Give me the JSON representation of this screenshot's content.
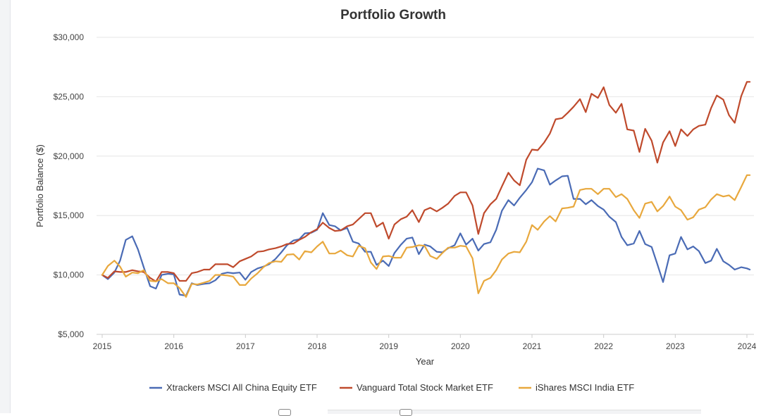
{
  "chart_data": {
    "type": "line",
    "title": "Portfolio Growth",
    "xlabel": "Year",
    "ylabel": "Portfolio Balance ($)",
    "xlim": [
      2015.0,
      2024.1
    ],
    "ylim": [
      5000,
      30000
    ],
    "x_ticks": [
      2015,
      2016,
      2017,
      2018,
      2019,
      2020,
      2021,
      2022,
      2023,
      2024
    ],
    "y_ticks": [
      5000,
      10000,
      15000,
      20000,
      25000,
      30000
    ],
    "y_tick_labels": [
      "$5,000",
      "$10,000",
      "$15,000",
      "$20,000",
      "$25,000",
      "$30,000"
    ],
    "grid": "horizontal",
    "legend_position": "bottom",
    "series": [
      {
        "name": "Xtrackers MSCI All China Equity ETF",
        "color": "#4a6bb5",
        "x": [
          2015.0,
          2015.08,
          2015.17,
          2015.25,
          2015.33,
          2015.42,
          2015.5,
          2015.58,
          2015.67,
          2015.75,
          2015.83,
          2015.92,
          2016.0,
          2016.08,
          2016.17,
          2016.25,
          2016.33,
          2016.42,
          2016.5,
          2016.58,
          2016.67,
          2016.75,
          2016.83,
          2016.92,
          2017.0,
          2017.08,
          2017.17,
          2017.25,
          2017.33,
          2017.42,
          2017.5,
          2017.58,
          2017.67,
          2017.75,
          2017.83,
          2017.92,
          2018.0,
          2018.08,
          2018.17,
          2018.25,
          2018.33,
          2018.42,
          2018.5,
          2018.58,
          2018.67,
          2018.75,
          2018.83,
          2018.92,
          2019.0,
          2019.08,
          2019.17,
          2019.25,
          2019.33,
          2019.42,
          2019.5,
          2019.58,
          2019.67,
          2019.75,
          2019.83,
          2019.92,
          2020.0,
          2020.08,
          2020.17,
          2020.25,
          2020.33,
          2020.42,
          2020.5,
          2020.58,
          2020.67,
          2020.75,
          2020.83,
          2020.92,
          2021.0,
          2021.08,
          2021.17,
          2021.25,
          2021.33,
          2021.42,
          2021.5,
          2021.58,
          2021.67,
          2021.75,
          2021.83,
          2021.92,
          2022.0,
          2022.08,
          2022.17,
          2022.25,
          2022.33,
          2022.42,
          2022.5,
          2022.58,
          2022.67,
          2022.75,
          2022.83,
          2022.92,
          2023.0,
          2023.08,
          2023.17,
          2023.25,
          2023.33,
          2023.42,
          2023.5,
          2023.58,
          2023.67,
          2023.75,
          2023.83,
          2023.92,
          2024.0,
          2024.04
        ],
        "values": [
          10000,
          9650,
          10200,
          11200,
          12950,
          13250,
          12150,
          10650,
          9050,
          8850,
          10000,
          10100,
          10050,
          8350,
          8250,
          9300,
          9150,
          9250,
          9300,
          9550,
          10100,
          10200,
          10150,
          10200,
          9600,
          10250,
          10550,
          10700,
          10900,
          11350,
          11900,
          12500,
          12900,
          13000,
          13500,
          13550,
          13800,
          15200,
          14200,
          14100,
          13750,
          13950,
          12800,
          12650,
          11950,
          11950,
          10850,
          11200,
          10750,
          11850,
          12550,
          13050,
          13150,
          11750,
          12550,
          12400,
          11950,
          11900,
          12250,
          12500,
          13500,
          12550,
          13050,
          12050,
          12600,
          12750,
          13800,
          15400,
          16300,
          15850,
          16500,
          17150,
          17800,
          18950,
          18800,
          17600,
          17950,
          18300,
          18350,
          16400,
          16400,
          15950,
          16300,
          15800,
          15500,
          14900,
          14450,
          13200,
          12500,
          12650,
          13700,
          12600,
          12350,
          10900,
          9400,
          11650,
          11800,
          13200,
          12150,
          12400,
          12000,
          11000,
          11200,
          12200,
          11150,
          10850,
          10450,
          10650,
          10550,
          10450
        ]
      },
      {
        "name": "Vanguard Total Stock Market ETF",
        "color": "#bf4a2c",
        "x": [
          2015.0,
          2015.08,
          2015.17,
          2015.25,
          2015.33,
          2015.42,
          2015.5,
          2015.58,
          2015.67,
          2015.75,
          2015.83,
          2015.92,
          2016.0,
          2016.08,
          2016.17,
          2016.25,
          2016.33,
          2016.42,
          2016.5,
          2016.58,
          2016.67,
          2016.75,
          2016.83,
          2016.92,
          2017.0,
          2017.08,
          2017.17,
          2017.25,
          2017.33,
          2017.42,
          2017.5,
          2017.58,
          2017.67,
          2017.75,
          2017.83,
          2017.92,
          2018.0,
          2018.08,
          2018.17,
          2018.25,
          2018.33,
          2018.42,
          2018.5,
          2018.58,
          2018.67,
          2018.75,
          2018.83,
          2018.92,
          2019.0,
          2019.08,
          2019.17,
          2019.25,
          2019.33,
          2019.42,
          2019.5,
          2019.58,
          2019.67,
          2019.75,
          2019.83,
          2019.92,
          2020.0,
          2020.08,
          2020.17,
          2020.25,
          2020.33,
          2020.42,
          2020.5,
          2020.58,
          2020.67,
          2020.75,
          2020.83,
          2020.92,
          2021.0,
          2021.08,
          2021.17,
          2021.25,
          2021.33,
          2021.42,
          2021.5,
          2021.58,
          2021.67,
          2021.75,
          2021.83,
          2021.92,
          2022.0,
          2022.08,
          2022.17,
          2022.25,
          2022.33,
          2022.42,
          2022.5,
          2022.58,
          2022.67,
          2022.75,
          2022.83,
          2022.92,
          2023.0,
          2023.08,
          2023.17,
          2023.25,
          2023.33,
          2023.42,
          2023.5,
          2023.58,
          2023.67,
          2023.75,
          2023.83,
          2023.92,
          2024.0,
          2024.04
        ],
        "values": [
          10000,
          9750,
          10300,
          10250,
          10250,
          10400,
          10300,
          10250,
          9750,
          9450,
          10250,
          10250,
          10150,
          9500,
          9500,
          10150,
          10250,
          10450,
          10450,
          10900,
          10900,
          10900,
          10650,
          11150,
          11350,
          11550,
          11950,
          12000,
          12150,
          12250,
          12400,
          12600,
          12650,
          12950,
          13200,
          13600,
          13850,
          14400,
          13950,
          13700,
          13750,
          14100,
          14250,
          14700,
          15200,
          15200,
          14050,
          14400,
          13050,
          14250,
          14700,
          14900,
          15450,
          14450,
          15450,
          15650,
          15350,
          15650,
          16000,
          16650,
          16950,
          16950,
          15850,
          13450,
          15200,
          15950,
          16400,
          17450,
          18600,
          17950,
          17550,
          19700,
          20550,
          20500,
          21150,
          21900,
          23100,
          23200,
          23650,
          24150,
          24800,
          23700,
          25250,
          24900,
          25800,
          24300,
          23650,
          24400,
          22250,
          22150,
          20350,
          22300,
          21300,
          19450,
          21150,
          22100,
          20850,
          22250,
          21700,
          22250,
          22550,
          22650,
          24050,
          25100,
          24750,
          23450,
          22800,
          25050,
          26250,
          26250
        ]
      },
      {
        "name": "iShares MSCI India ETF",
        "color": "#e8a83d",
        "x": [
          2015.0,
          2015.08,
          2015.17,
          2015.25,
          2015.33,
          2015.42,
          2015.5,
          2015.58,
          2015.67,
          2015.75,
          2015.83,
          2015.92,
          2016.0,
          2016.08,
          2016.17,
          2016.25,
          2016.33,
          2016.42,
          2016.5,
          2016.58,
          2016.67,
          2016.75,
          2016.83,
          2016.92,
          2017.0,
          2017.08,
          2017.17,
          2017.25,
          2017.33,
          2017.42,
          2017.5,
          2017.58,
          2017.67,
          2017.75,
          2017.83,
          2017.92,
          2018.0,
          2018.08,
          2018.17,
          2018.25,
          2018.33,
          2018.42,
          2018.5,
          2018.58,
          2018.67,
          2018.75,
          2018.83,
          2018.92,
          2019.0,
          2019.08,
          2019.17,
          2019.25,
          2019.33,
          2019.42,
          2019.5,
          2019.58,
          2019.67,
          2019.75,
          2019.83,
          2019.92,
          2020.0,
          2020.08,
          2020.17,
          2020.25,
          2020.33,
          2020.42,
          2020.5,
          2020.58,
          2020.67,
          2020.75,
          2020.83,
          2020.92,
          2021.0,
          2021.08,
          2021.17,
          2021.25,
          2021.33,
          2021.42,
          2021.5,
          2021.58,
          2021.67,
          2021.75,
          2021.83,
          2021.92,
          2022.0,
          2022.08,
          2022.17,
          2022.25,
          2022.33,
          2022.42,
          2022.5,
          2022.58,
          2022.67,
          2022.75,
          2022.83,
          2022.92,
          2023.0,
          2023.08,
          2023.17,
          2023.25,
          2023.33,
          2023.42,
          2023.5,
          2023.58,
          2023.67,
          2023.75,
          2023.83,
          2023.92,
          2024.0,
          2024.04
        ],
        "values": [
          10000,
          10750,
          11200,
          10700,
          9850,
          10200,
          10150,
          10400,
          9500,
          9450,
          9650,
          9300,
          9300,
          8900,
          8150,
          9250,
          9200,
          9350,
          9500,
          10000,
          10000,
          9950,
          9850,
          9150,
          9150,
          9700,
          10150,
          10650,
          11000,
          11150,
          11100,
          11700,
          11750,
          11300,
          12000,
          11900,
          12400,
          12800,
          11800,
          11800,
          12050,
          11650,
          11550,
          12450,
          12250,
          11050,
          10500,
          11550,
          11600,
          11450,
          11450,
          12300,
          12350,
          12500,
          12450,
          11600,
          11350,
          11850,
          12300,
          12300,
          12450,
          12400,
          11400,
          8450,
          9500,
          9750,
          10400,
          11300,
          11800,
          11950,
          11900,
          12800,
          14200,
          13800,
          14500,
          14950,
          14500,
          15600,
          15650,
          15750,
          17150,
          17250,
          17250,
          16800,
          17250,
          17250,
          16550,
          16800,
          16400,
          15450,
          14800,
          16000,
          16150,
          15350,
          15800,
          16600,
          15750,
          15450,
          14650,
          14850,
          15500,
          15700,
          16350,
          16800,
          16600,
          16700,
          16300,
          17400,
          18400,
          18400
        ]
      }
    ]
  },
  "decor": {
    "bottom_scroll_handles": 2
  }
}
